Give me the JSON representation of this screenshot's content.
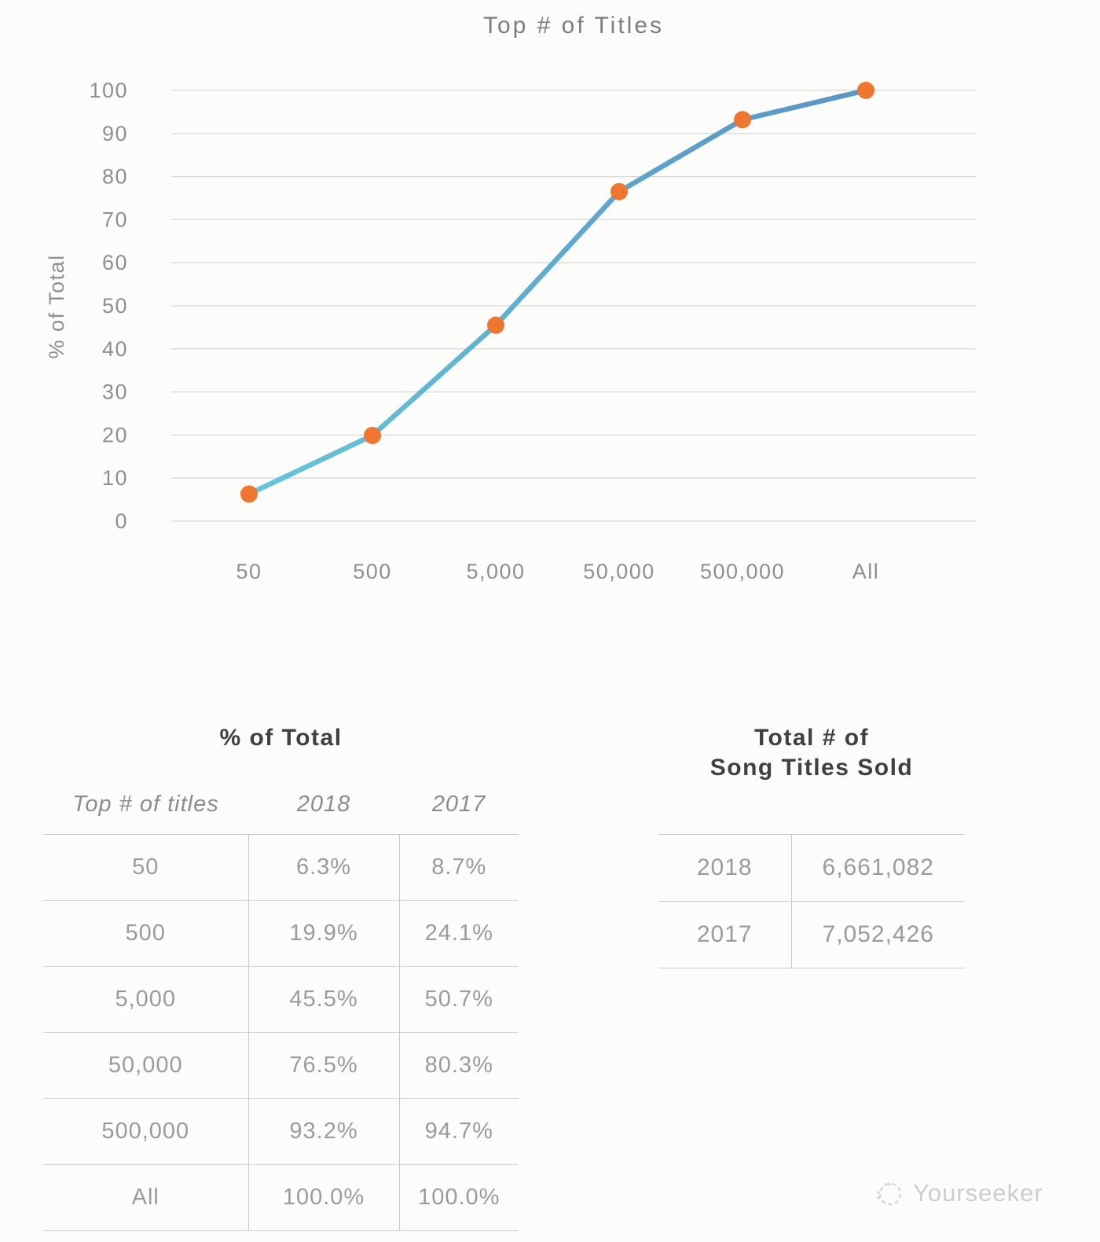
{
  "chart": {
    "title": "Top # of Titles",
    "y_axis_label": "% of Total"
  },
  "chart_data": {
    "type": "line",
    "title": "Top # of Titles",
    "xlabel": "Top # of titles",
    "ylabel": "% of Total",
    "categories": [
      "50",
      "500",
      "5,000",
      "50,000",
      "500,000",
      "All"
    ],
    "series": [
      {
        "name": "2018",
        "values": [
          6.3,
          19.9,
          45.5,
          76.5,
          93.2,
          100.0
        ]
      }
    ],
    "ylim": [
      0,
      100
    ],
    "y_ticks": [
      0,
      10,
      20,
      30,
      40,
      50,
      60,
      70,
      80,
      90,
      100
    ],
    "grid": true,
    "legend": "none",
    "line_color_start": "#64c4d9",
    "line_color_end": "#5a96c5",
    "marker_color": "#ef7630",
    "gridline_color": "#d8d8d6"
  },
  "tables": {
    "pct_of_total": {
      "title": "% of Total",
      "columns": [
        "Top # of titles",
        "2018",
        "2017"
      ],
      "rows": [
        [
          "50",
          "6.3%",
          "8.7%"
        ],
        [
          "500",
          "19.9%",
          "24.1%"
        ],
        [
          "5,000",
          "45.5%",
          "50.7%"
        ],
        [
          "50,000",
          "76.5%",
          "80.3%"
        ],
        [
          "500,000",
          "93.2%",
          "94.7%"
        ],
        [
          "All",
          "100.0%",
          "100.0%"
        ]
      ]
    },
    "totals": {
      "title_line1": "Total # of",
      "title_line2": "Song Titles Sold",
      "rows": [
        [
          "2018",
          "6,661,082"
        ],
        [
          "2017",
          "7,052,426"
        ]
      ]
    }
  },
  "watermark": {
    "text": "Yourseeker"
  }
}
